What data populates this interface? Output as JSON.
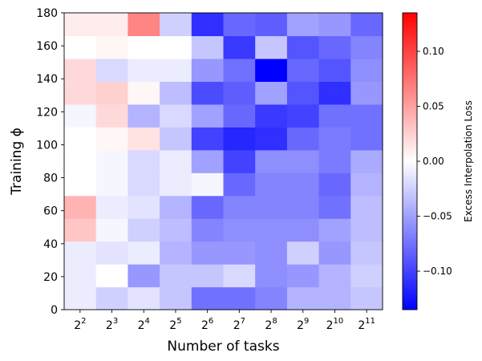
{
  "chart_data": {
    "type": "heatmap",
    "title": "",
    "xlabel": "Number of tasks",
    "ylabel": "Training ϕ",
    "x_tick_labels": [
      {
        "base": "2",
        "exp": "2"
      },
      {
        "base": "2",
        "exp": "3"
      },
      {
        "base": "2",
        "exp": "4"
      },
      {
        "base": "2",
        "exp": "5"
      },
      {
        "base": "2",
        "exp": "6"
      },
      {
        "base": "2",
        "exp": "7"
      },
      {
        "base": "2",
        "exp": "8"
      },
      {
        "base": "2",
        "exp": "9"
      },
      {
        "base": "2",
        "exp": "10"
      },
      {
        "base": "2",
        "exp": "11"
      }
    ],
    "y_ticks": [
      0,
      20,
      40,
      60,
      80,
      100,
      120,
      140,
      160,
      180
    ],
    "y_range": [
      0,
      180
    ],
    "row_step": 10,
    "colorbar": {
      "label": "Excess Interpolation Loss",
      "range": [
        -0.135,
        0.135
      ],
      "ticks": [
        -0.1,
        -0.05,
        0.0,
        0.05,
        0.1
      ],
      "tick_labels": [
        "−0.10",
        "−0.05",
        "0.00",
        "0.05",
        "0.10"
      ],
      "colormap": "bwr"
    },
    "values": [
      [
        -0.01,
        -0.025,
        -0.015,
        -0.03,
        -0.075,
        -0.075,
        -0.065,
        -0.04,
        -0.04,
        -0.03
      ],
      [
        -0.01,
        0.0,
        -0.055,
        -0.03,
        -0.03,
        -0.02,
        -0.06,
        -0.055,
        -0.04,
        -0.025
      ],
      [
        -0.01,
        -0.015,
        -0.01,
        -0.04,
        -0.055,
        -0.055,
        -0.06,
        -0.025,
        -0.055,
        -0.03
      ],
      [
        0.03,
        -0.005,
        -0.025,
        -0.035,
        -0.065,
        -0.06,
        -0.06,
        -0.06,
        -0.05,
        -0.035
      ],
      [
        0.04,
        -0.01,
        -0.015,
        -0.04,
        -0.08,
        -0.065,
        -0.065,
        -0.065,
        -0.075,
        -0.035
      ],
      [
        0.0,
        -0.005,
        -0.02,
        -0.01,
        -0.005,
        -0.08,
        -0.065,
        -0.065,
        -0.08,
        -0.04
      ],
      [
        0.0,
        -0.005,
        -0.02,
        -0.01,
        -0.05,
        -0.1,
        -0.06,
        -0.06,
        -0.07,
        -0.045
      ],
      [
        0.0,
        0.005,
        0.015,
        -0.03,
        -0.1,
        -0.115,
        -0.11,
        -0.08,
        -0.07,
        -0.075
      ],
      [
        -0.005,
        0.02,
        -0.04,
        -0.02,
        -0.05,
        -0.08,
        -0.105,
        -0.1,
        -0.075,
        -0.075
      ],
      [
        0.02,
        0.025,
        0.005,
        -0.035,
        -0.095,
        -0.085,
        -0.05,
        -0.09,
        -0.11,
        -0.055
      ],
      [
        0.02,
        -0.02,
        -0.01,
        -0.01,
        -0.055,
        -0.075,
        -0.135,
        -0.08,
        -0.09,
        -0.06
      ],
      [
        0.0,
        0.005,
        0.0,
        0.0,
        -0.03,
        -0.105,
        -0.03,
        -0.09,
        -0.08,
        -0.065
      ],
      [
        0.01,
        0.01,
        0.065,
        -0.025,
        -0.11,
        -0.08,
        -0.085,
        -0.05,
        -0.055,
        -0.08
      ]
    ]
  }
}
